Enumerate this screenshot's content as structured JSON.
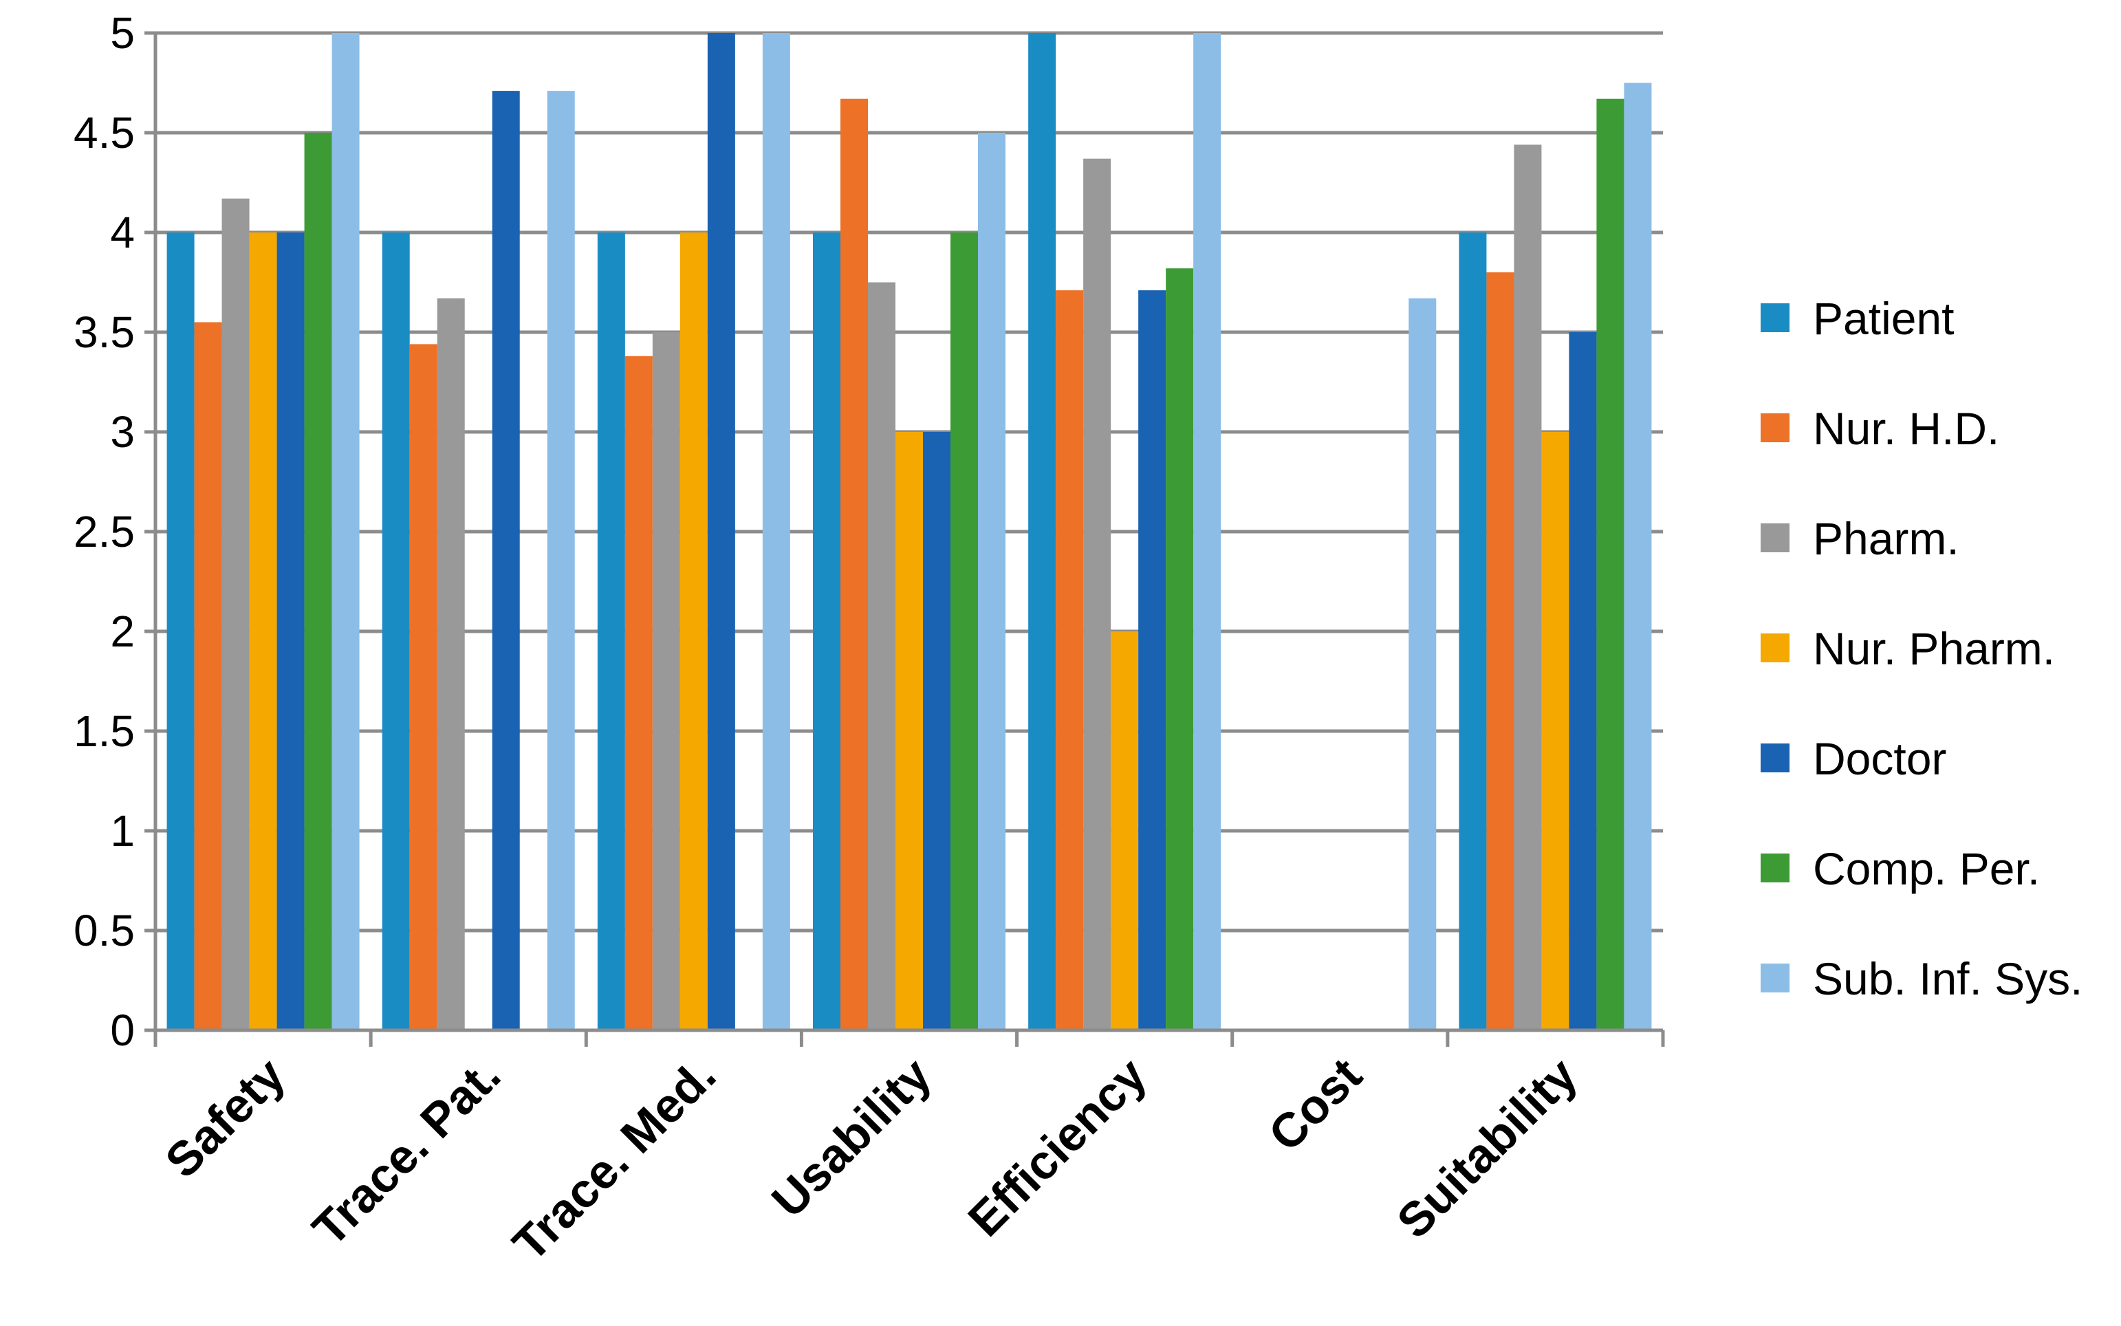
{
  "chart_data": {
    "type": "bar",
    "title": "",
    "xlabel": "",
    "ylabel": "",
    "ylim": [
      0,
      5
    ],
    "yticks": [
      "0",
      "0.5",
      "1",
      "1.5",
      "2",
      "2.5",
      "3",
      "3.5",
      "4",
      "4.5",
      "5"
    ],
    "grid": "horizontal",
    "legend_position": "right",
    "categories": [
      "Safety",
      "Trace. Pat.",
      "Trace. Med.",
      "Usability",
      "Efficiency",
      "Cost",
      "Suitability"
    ],
    "series": [
      {
        "name": "Patient",
        "color": "#1a8cc4",
        "values": [
          4,
          4,
          4,
          4,
          5,
          0,
          4
        ]
      },
      {
        "name": "Nur. H.D.",
        "color": "#ed7126",
        "values": [
          3.55,
          3.44,
          3.38,
          4.67,
          3.71,
          0,
          3.8
        ]
      },
      {
        "name": "Pharm.",
        "color": "#999999",
        "values": [
          4.17,
          3.67,
          3.5,
          3.75,
          4.37,
          0,
          4.44
        ]
      },
      {
        "name": "Nur. Pharm.",
        "color": "#f5a800",
        "values": [
          4,
          0,
          4,
          3,
          2,
          0,
          3
        ]
      },
      {
        "name": "Doctor",
        "color": "#1a62b2",
        "values": [
          4,
          4.71,
          5,
          3,
          3.71,
          0,
          3.5
        ]
      },
      {
        "name": "Comp. Per.",
        "color": "#3d9b35",
        "values": [
          4.5,
          0,
          0,
          4,
          3.82,
          0,
          4.67
        ]
      },
      {
        "name": "Sub. Inf. Sys.",
        "color": "#8cbde6",
        "values": [
          5,
          4.71,
          5,
          4.5,
          5,
          3.67,
          4.75
        ]
      }
    ]
  }
}
